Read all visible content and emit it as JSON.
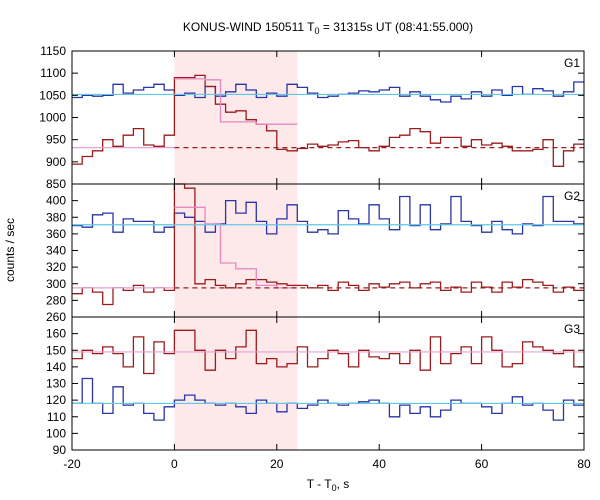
{
  "chart_data": {
    "type": "line",
    "title": {
      "prefix": "KONUS-WIND 150511 T",
      "sub": "0",
      "suffix": " = 31315s UT (08:41:55.000)"
    },
    "xlabel": {
      "prefix": "T - T",
      "sub": "0",
      "suffix": ", s"
    },
    "ylabel": "counts / sec",
    "xlim": [
      -20,
      80
    ],
    "x_ticks": [
      "-20",
      "0",
      "20",
      "40",
      "60",
      "80"
    ],
    "highlight_interval": {
      "from": 0,
      "to": 24,
      "color": "#fde8ea"
    },
    "colors": {
      "blue": "#2a35a6",
      "red": "#9b1c1c",
      "cyan": "#5ec8e6",
      "pink": "#e8a0d0",
      "pink_step": "#e58ac0"
    },
    "panels": [
      {
        "name": "G1",
        "ylim": [
          850,
          1150
        ],
        "y_ticks": [
          "850",
          "900",
          "950",
          "1000",
          "1050",
          "1100",
          "1150"
        ],
        "series": [
          {
            "color": "blue",
            "x_start": -20,
            "bin": 2,
            "values": [
              1045,
              1050,
              1048,
              1050,
              1075,
              1055,
              1062,
              1068,
              1075,
              1062,
              1050,
              1055,
              1045,
              1070,
              1048,
              1058,
              1075,
              1062,
              1045,
              1055,
              1048,
              1075,
              1068,
              1055,
              1045,
              1048,
              1052,
              1055,
              1060,
              1058,
              1062,
              1068,
              1048,
              1058,
              1048,
              1040,
              1035,
              1048,
              1042,
              1058,
              1048,
              1062,
              1050,
              1070,
              1052,
              1065,
              1060,
              1048,
              1058,
              1080
            ]
          },
          {
            "color": "red",
            "x_start": -20,
            "bin": 2,
            "values": [
              895,
              912,
              925,
              950,
              935,
              960,
              975,
              938,
              935,
              960,
              1090,
              1090,
              1095,
              1070,
              1030,
              1012,
              1015,
              995,
              985,
              970,
              928,
              925,
              930,
              940,
              935,
              938,
              945,
              948,
              932,
              925,
              935,
              955,
              960,
              975,
              968,
              942,
              955,
              955,
              935,
              950,
              938,
              942,
              935,
              925,
              925,
              928,
              950,
              890,
              925,
              940
            ]
          },
          {
            "color": "pink_step",
            "x_start": 0,
            "bin": [
              0,
              1.5,
              3,
              4.5,
              6,
              9,
              12,
              16,
              20,
              24
            ],
            "values": [
              1087,
              1087,
              1087,
              1087,
              1085,
              990,
              990,
              985,
              985
            ]
          },
          {
            "color": "cyan",
            "kind": "hline",
            "value": 1052
          },
          {
            "color": "red",
            "kind": "dashed",
            "value": 932,
            "from": 0,
            "to": 80
          },
          {
            "color": "pink",
            "kind": "hline",
            "value": 932,
            "from": -20,
            "to": 0
          }
        ]
      },
      {
        "name": "G2",
        "ylim": [
          260,
          420
        ],
        "y_ticks": [
          "260",
          "280",
          "300",
          "320",
          "340",
          "360",
          "380",
          "400"
        ],
        "series": [
          {
            "color": "blue",
            "x_start": -20,
            "bin": 2,
            "values": [
              370,
              368,
              383,
              385,
              362,
              378,
              375,
              375,
              362,
              368,
              385,
              380,
              375,
              362,
              372,
              400,
              385,
              398,
              375,
              360,
              378,
              395,
              375,
              362,
              365,
              360,
              388,
              378,
              372,
              395,
              378,
              365,
              405,
              370,
              395,
              365,
              372,
              405,
              375,
              370,
              362,
              375,
              365,
              360,
              372,
              370,
              405,
              375,
              375,
              372
            ]
          },
          {
            "color": "red",
            "x_start": -20,
            "bin": 2,
            "values": [
              288,
              295,
              290,
              275,
              295,
              292,
              298,
              290,
              295,
              292,
              420,
              415,
              300,
              305,
              298,
              295,
              300,
              305,
              305,
              302,
              300,
              298,
              298,
              295,
              298,
              292,
              302,
              298,
              292,
              300,
              296,
              300,
              302,
              295,
              300,
              302,
              292,
              296,
              290,
              302,
              296,
              290,
              302,
              296,
              305,
              302,
              298,
              290,
              296,
              292
            ]
          },
          {
            "color": "pink_step",
            "x_start": 0,
            "bin": [
              0,
              3,
              6,
              9,
              12,
              16,
              20,
              24
            ],
            "values": [
              392,
              392,
              372,
              325,
              318,
              298,
              295
            ]
          },
          {
            "color": "cyan",
            "kind": "hline",
            "value": 371
          },
          {
            "color": "red",
            "kind": "dashed",
            "value": 295,
            "from": 0,
            "to": 80
          },
          {
            "color": "pink",
            "kind": "hline",
            "value": 295,
            "from": -20,
            "to": 0
          }
        ]
      },
      {
        "name": "G3",
        "ylim": [
          90,
          170
        ],
        "y_ticks": [
          "90",
          "100",
          "110",
          "120",
          "130",
          "140",
          "150",
          "160"
        ],
        "series": [
          {
            "color": "red",
            "x_start": -20,
            "bin": 2,
            "values": [
              145,
              150,
              148,
              152,
              148,
              140,
              158,
              136,
              155,
              148,
              162,
              162,
              150,
              138,
              150,
              145,
              152,
              162,
              142,
              145,
              140,
              142,
              152,
              140,
              145,
              150,
              148,
              140,
              150,
              146,
              145,
              148,
              142,
              150,
              138,
              158,
              142,
              148,
              152,
              142,
              158,
              150,
              140,
              142,
              155,
              152,
              150,
              148,
              150,
              140
            ]
          },
          {
            "color": "blue",
            "x_start": -20,
            "bin": 2,
            "values": [
              118,
              133,
              118,
              112,
              128,
              117,
              118,
              112,
              108,
              116,
              120,
              123,
              120,
              118,
              117,
              118,
              116,
              112,
              120,
              118,
              113,
              118,
              115,
              117,
              120,
              118,
              117,
              118,
              119,
              120,
              118,
              110,
              117,
              112,
              116,
              110,
              114,
              120,
              118,
              118,
              116,
              112,
              118,
              122,
              117,
              118,
              114,
              108,
              120,
              117
            ]
          },
          {
            "color": "pink",
            "kind": "hline",
            "value": 149
          },
          {
            "color": "cyan",
            "kind": "hline",
            "value": 118
          }
        ]
      }
    ]
  }
}
